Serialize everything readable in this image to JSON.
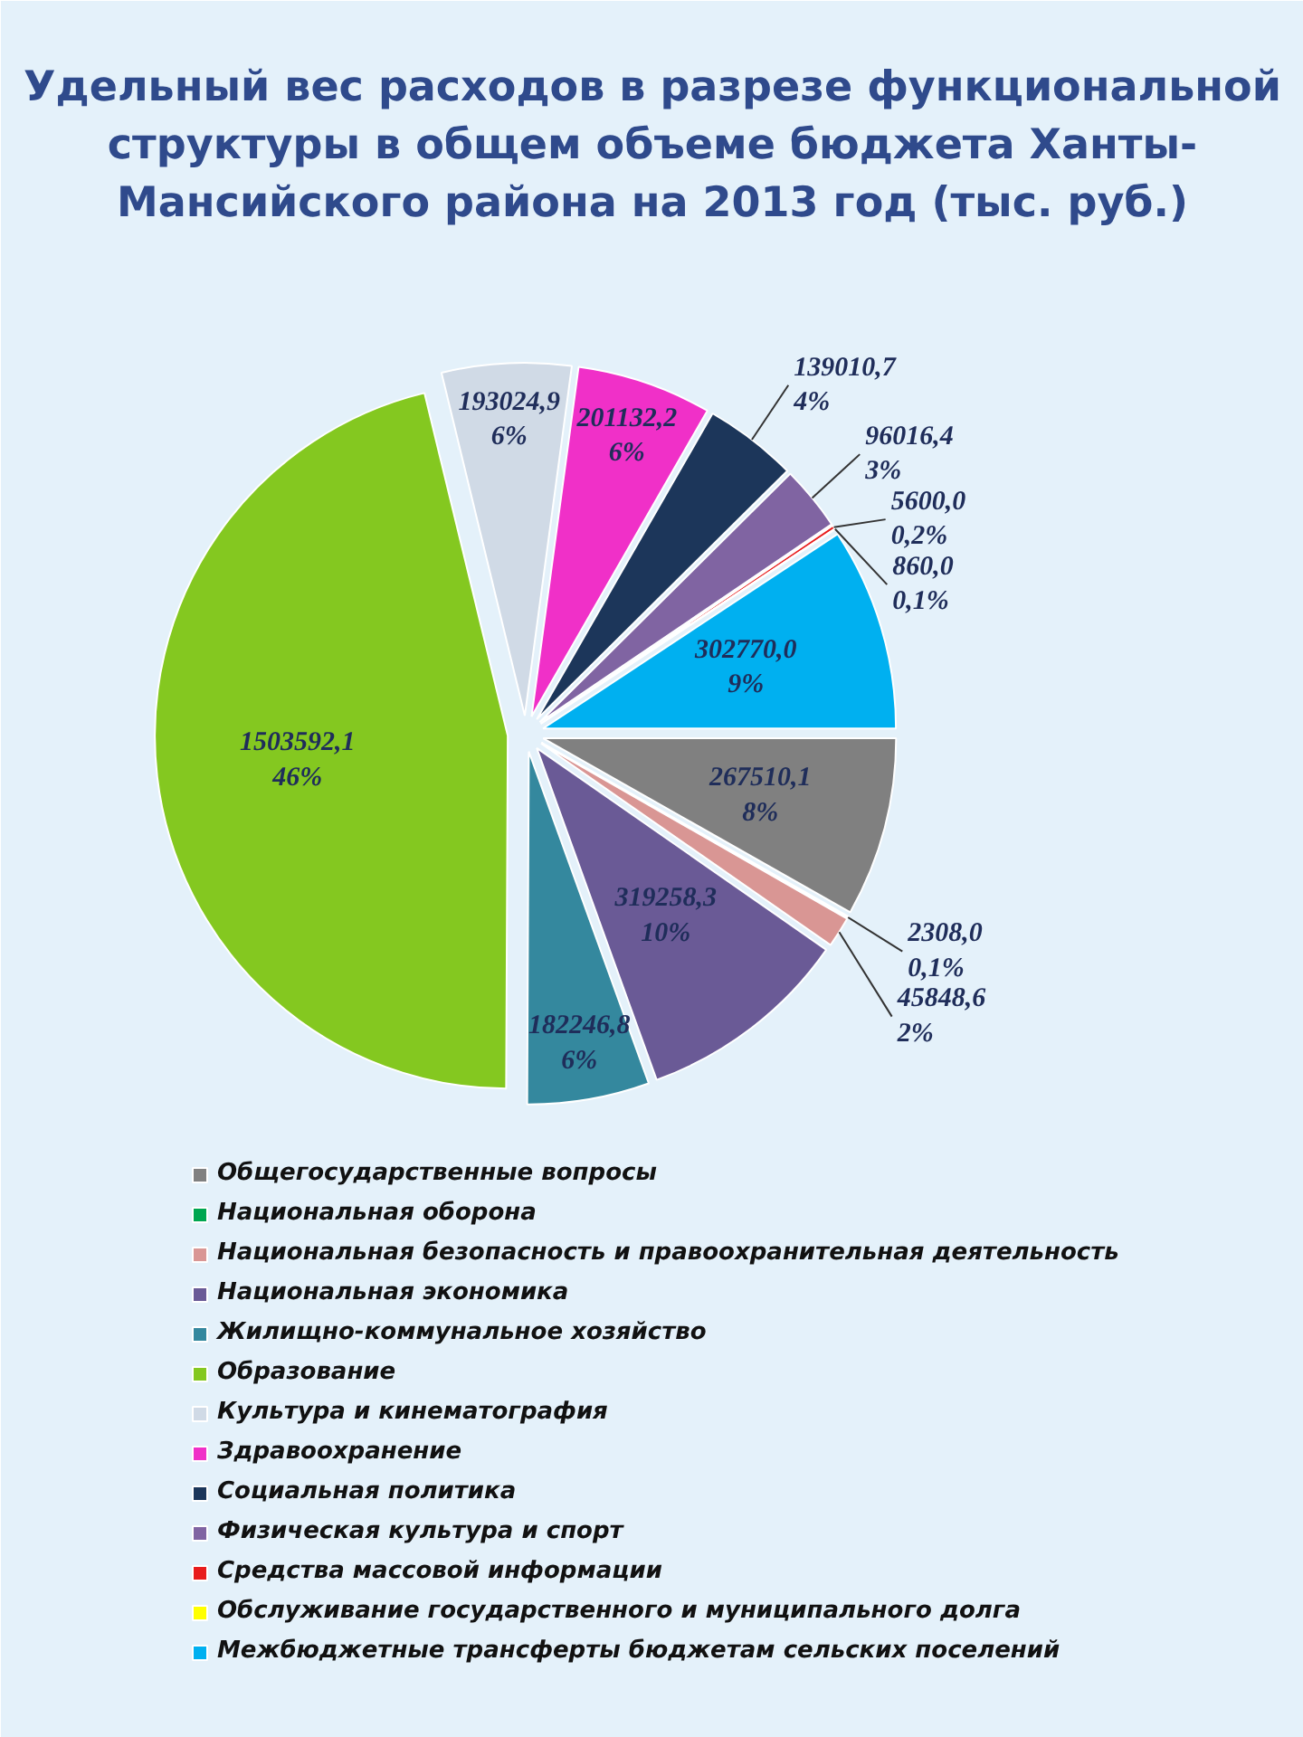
{
  "chart_data": {
    "type": "pie",
    "title": "Удельный вес расходов в разрезе функциональной структуры в общем объеме бюджета Ханты-Мансийского района на 2013 год (тыс. руб.)",
    "categories": [
      "Общегосударственные вопросы",
      "Национальная оборона",
      "Национальная безопасность и правоохранительная деятельность",
      "Национальная экономика",
      "Жилищно-коммунальное хозяйство",
      "Образование",
      "Культура и кинематография",
      "Здравоохранение",
      "Социальная политика",
      "Физическая культура и спорт",
      "Средства массовой информации",
      "Обслуживание государственного и муниципального долга",
      "Межбюджетные трансферты бюджетам сельских поселений"
    ],
    "values": [
      267510.1,
      2308.0,
      45848.6,
      319258.3,
      182246.8,
      1503592.1,
      193024.9,
      201132.2,
      139010.7,
      96016.4,
      5600.0,
      860.0,
      302770.0
    ],
    "value_labels": [
      "267510,1\n8%",
      "2308,0\n0,1%",
      "45848,6\n2%",
      "319258,3\n10%",
      "182246,8\n6%",
      "1503592,1\n46%",
      "193024,9\n6%",
      "201132,2\n6%",
      "139010,7\n4%",
      "96016,4\n3%",
      "5600,0\n0,2%",
      "860,0\n0,1%",
      "302770,0\n9%"
    ],
    "colors": [
      "#808080",
      "#00a650",
      "#d99694",
      "#6a5a96",
      "#34889e",
      "#84c820",
      "#d0dae6",
      "#f030c8",
      "#1c365a",
      "#8064a2",
      "#e81c1c",
      "#ffff00",
      "#00b0f0"
    ],
    "legend": "bottom"
  }
}
